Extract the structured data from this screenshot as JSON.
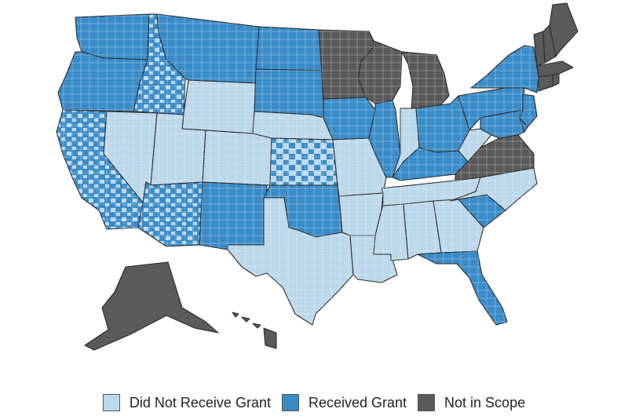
{
  "colors": {
    "did_not_receive": "#bcd8eb",
    "received": "#3a8cc8",
    "not_in_scope": "#5a5a5a",
    "county_line": "#ffffff"
  },
  "legend": {
    "items": [
      {
        "label": "Did Not Receive Grant",
        "color": "#bcd8eb"
      },
      {
        "label": "Received Grant",
        "color": "#3a8cc8"
      },
      {
        "label": "Not in Scope",
        "color": "#5a5a5a"
      }
    ]
  },
  "map_data": {
    "type": "choropleth",
    "unit": "county",
    "states": [
      {
        "code": "WA",
        "category": "received"
      },
      {
        "code": "OR",
        "category": "received"
      },
      {
        "code": "CA",
        "category": "mixed_received"
      },
      {
        "code": "NV",
        "category": "did_not_receive"
      },
      {
        "code": "ID",
        "category": "mixed_received"
      },
      {
        "code": "MT",
        "category": "received"
      },
      {
        "code": "WY",
        "category": "did_not_receive"
      },
      {
        "code": "UT",
        "category": "did_not_receive"
      },
      {
        "code": "AZ",
        "category": "mixed_received"
      },
      {
        "code": "CO",
        "category": "did_not_receive"
      },
      {
        "code": "NM",
        "category": "received"
      },
      {
        "code": "ND",
        "category": "received"
      },
      {
        "code": "SD",
        "category": "received"
      },
      {
        "code": "NE",
        "category": "did_not_receive"
      },
      {
        "code": "KS",
        "category": "mixed"
      },
      {
        "code": "OK",
        "category": "received"
      },
      {
        "code": "TX",
        "category": "did_not_receive"
      },
      {
        "code": "MN",
        "category": "not_in_scope"
      },
      {
        "code": "IA",
        "category": "received"
      },
      {
        "code": "MO",
        "category": "did_not_receive"
      },
      {
        "code": "AR",
        "category": "did_not_receive"
      },
      {
        "code": "LA",
        "category": "did_not_receive"
      },
      {
        "code": "WI",
        "category": "not_in_scope"
      },
      {
        "code": "IL",
        "category": "received"
      },
      {
        "code": "MI",
        "category": "not_in_scope"
      },
      {
        "code": "IN",
        "category": "did_not_receive"
      },
      {
        "code": "OH",
        "category": "received"
      },
      {
        "code": "KY",
        "category": "received"
      },
      {
        "code": "TN",
        "category": "did_not_receive"
      },
      {
        "code": "MS",
        "category": "did_not_receive"
      },
      {
        "code": "AL",
        "category": "did_not_receive"
      },
      {
        "code": "GA",
        "category": "did_not_receive"
      },
      {
        "code": "FL",
        "category": "received"
      },
      {
        "code": "SC",
        "category": "received"
      },
      {
        "code": "NC",
        "category": "did_not_receive"
      },
      {
        "code": "VA",
        "category": "not_in_scope"
      },
      {
        "code": "WV",
        "category": "did_not_receive"
      },
      {
        "code": "PA",
        "category": "received"
      },
      {
        "code": "NY",
        "category": "received"
      },
      {
        "code": "NJ",
        "category": "received"
      },
      {
        "code": "MD",
        "category": "received"
      },
      {
        "code": "DE",
        "category": "received"
      },
      {
        "code": "CT",
        "category": "not_in_scope"
      },
      {
        "code": "RI",
        "category": "not_in_scope"
      },
      {
        "code": "MA",
        "category": "not_in_scope"
      },
      {
        "code": "VT",
        "category": "not_in_scope"
      },
      {
        "code": "NH",
        "category": "not_in_scope"
      },
      {
        "code": "ME",
        "category": "not_in_scope"
      },
      {
        "code": "AK",
        "category": "not_in_scope"
      },
      {
        "code": "HI",
        "category": "not_in_scope"
      }
    ]
  }
}
